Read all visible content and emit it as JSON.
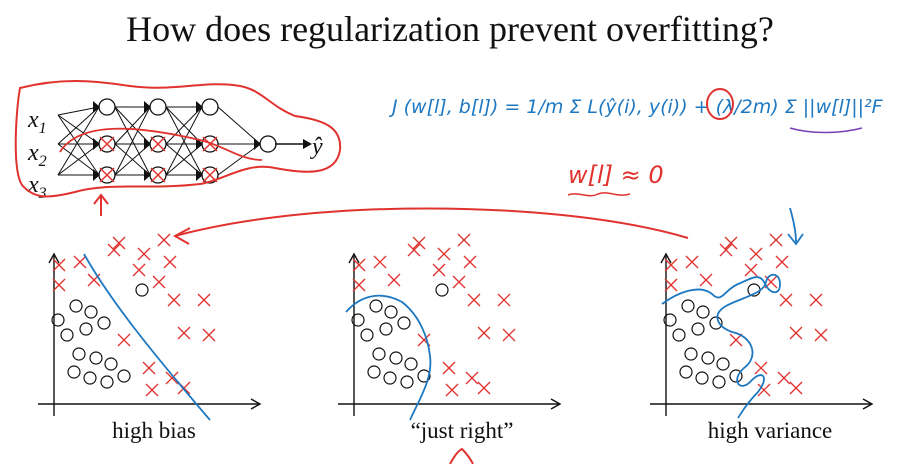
{
  "title": "How does regularization prevent overfitting?",
  "network": {
    "inputs": [
      "x",
      "x",
      "x"
    ],
    "input_subscripts": [
      "1",
      "2",
      "3"
    ],
    "output_label": "ŷ"
  },
  "equation": {
    "cost": "J (w[l], b[l]) = 1/m Σ L(ŷ(i), y(i)) + (λ/2m) Σ ||w[l]||²F",
    "approx": "w[l] ≈ 0"
  },
  "plots": [
    {
      "caption": "high bias"
    },
    {
      "caption": "“just right”"
    },
    {
      "caption": "high variance"
    }
  ],
  "colors": {
    "ink": "#111111",
    "red": "#e0332f",
    "blue": "#1d78c1",
    "purple": "#7a3fb4"
  }
}
